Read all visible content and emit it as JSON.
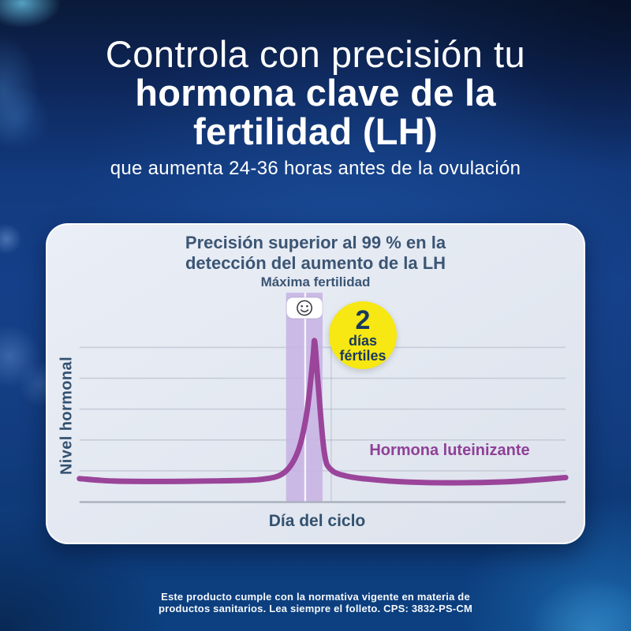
{
  "headline": {
    "line1": "Controla con precisión tu",
    "line2": "hormona clave de la",
    "line3": "fertilidad (LH)",
    "subtitle": "que aumenta 24-36 horas antes de la ovulación"
  },
  "card": {
    "title_line1": "Precisión superior al 99 % en la",
    "title_line2": "detección del aumento de la LH",
    "band_label": "Máxima fertilidad",
    "badge": {
      "number": "2",
      "line1": "días",
      "line2": "fértiles",
      "bg_color": "#f7e712",
      "text_color": "#17395f"
    },
    "series_label": "Hormona luteinizante",
    "xlabel": "Día del ciclo",
    "ylabel": "Nivel hormonal",
    "smiley_icon": "smiley-face-peak-fertility"
  },
  "footer": {
    "lines": [
      "Este producto cumple con la normativa vigente en materia de",
      "productos sanitarios. Lea siempre el folleto. CPS: 3832-PS-CM"
    ]
  },
  "colors": {
    "background_blue": "#123a7e",
    "card_bg": "#e4e9f2",
    "title_navy": "#3b5574",
    "curve_purple": "#9a449a",
    "band_lavender": "#c7b3e3",
    "badge_yellow": "#f7e712",
    "gridline": "#c7cdd9",
    "axis": "#a8afbc",
    "headline_white": "#ffffff"
  },
  "chart_data": {
    "type": "line",
    "title": "Precisión superior al 99 % en la detección del aumento de la LH",
    "xlabel": "Día del ciclo",
    "ylabel": "Nivel hormonal",
    "x_range_days": [
      0,
      28
    ],
    "y_relative_range": [
      0,
      10
    ],
    "grid": {
      "horizontal_lines": 5,
      "vertical_lines": 0,
      "tick_labels": "none"
    },
    "legend_position": "inline-right",
    "series": [
      {
        "name": "Hormona luteinizante",
        "color": "#9a449a",
        "points": [
          [
            0,
            1.0
          ],
          [
            2,
            0.86
          ],
          [
            5,
            0.84
          ],
          [
            8,
            0.87
          ],
          [
            10.5,
            0.96
          ],
          [
            11.8,
            1.35
          ],
          [
            12.6,
            2.6
          ],
          [
            13.1,
            4.8
          ],
          [
            13.45,
            7.9
          ],
          [
            13.55,
            8.8
          ],
          [
            13.75,
            6.3
          ],
          [
            14.1,
            2.5
          ],
          [
            14.5,
            1.5
          ],
          [
            15.5,
            1.12
          ],
          [
            17,
            0.93
          ],
          [
            19,
            0.8
          ],
          [
            22,
            0.76
          ],
          [
            25,
            0.84
          ],
          [
            28,
            1.06
          ]
        ]
      }
    ],
    "peak": {
      "day": 13.55,
      "value": 8.8
    },
    "fertile_window": {
      "label": "Máxima fertilidad",
      "day_range": [
        11.9,
        14.0
      ],
      "divider_day": 13.0,
      "color": "#c7b3e3",
      "callout": "2 días fértiles",
      "marker": "smiley-face"
    }
  }
}
